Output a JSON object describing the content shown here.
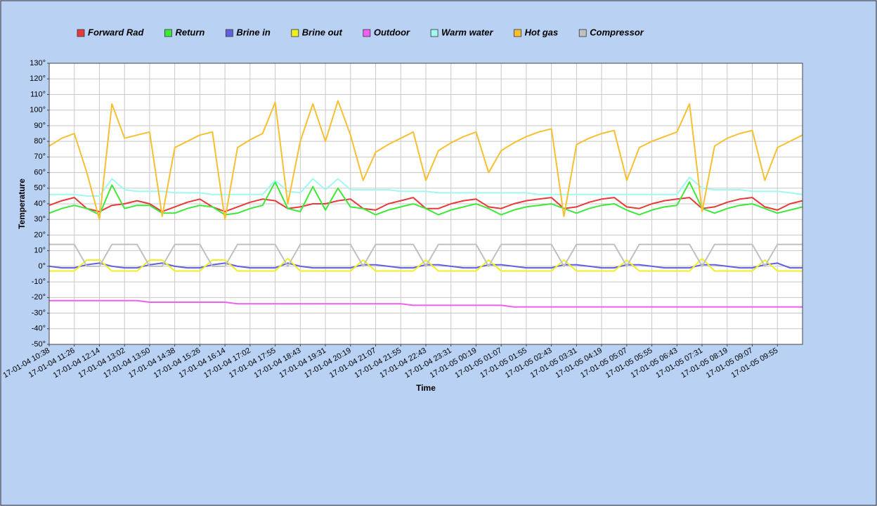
{
  "chart_data": {
    "type": "line",
    "x_label": "Time",
    "y_label": "Temperature",
    "categories": [
      "17-01-04 10:38",
      null,
      "17-01-04 11:26",
      null,
      "17-01-04 12:14",
      null,
      "17-01-04 13:02",
      null,
      "17-01-04 13:50",
      null,
      "17-01-04 14:38",
      null,
      "17-01-04 15:26",
      null,
      "17-01-04 16:14",
      null,
      "17-01-04 17:02",
      null,
      "17-01-04 17:55",
      null,
      "17-01-04 18:43",
      null,
      "17-01-04 19:31",
      null,
      "17-01-04 20:19",
      null,
      "17-01-04 21:07",
      null,
      "17-01-04 21:55",
      null,
      "17-01-04 22:43",
      null,
      "17-01-04 23:31",
      null,
      "17-01-05 00:19",
      null,
      "17-01-05 01:07",
      null,
      "17-01-05 01:55",
      null,
      "17-01-05 02:43",
      null,
      "17-01-05 03:31",
      null,
      "17-01-05 04:19",
      null,
      "17-01-05 05:07",
      null,
      "17-01-05 05:55",
      null,
      "17-01-05 06:43",
      null,
      "17-01-05 07:31",
      null,
      "17-01-05 08:19",
      null,
      "17-01-05 09:07",
      null,
      "17-01-05 09:55",
      null,
      null
    ],
    "ylim": [
      -50,
      130
    ],
    "yticks": [
      {
        "value": -50,
        "label": "-50°"
      },
      {
        "value": -40,
        "label": "-40°"
      },
      {
        "value": -30,
        "label": "-30°"
      },
      {
        "value": -20,
        "label": "-20°"
      },
      {
        "value": -10,
        "label": "-10°"
      },
      {
        "value": 0,
        "label": "0°"
      },
      {
        "value": 10,
        "label": "10°"
      },
      {
        "value": 20,
        "label": "20°"
      },
      {
        "value": 30,
        "label": "30°"
      },
      {
        "value": 40,
        "label": "40°"
      },
      {
        "value": 50,
        "label": "50°"
      },
      {
        "value": 60,
        "label": "60°"
      },
      {
        "value": 70,
        "label": "70°"
      },
      {
        "value": 80,
        "label": "80°"
      },
      {
        "value": 90,
        "label": "90°"
      },
      {
        "value": 100,
        "label": "100°"
      },
      {
        "value": 110,
        "label": "110°"
      },
      {
        "value": 120,
        "label": "120°"
      },
      {
        "value": 130,
        "label": "130°"
      }
    ],
    "grid": true,
    "legend": "top",
    "series": [
      {
        "name": "Forward Rad",
        "color": "#e83a3a",
        "values": [
          39,
          42,
          44,
          37,
          35,
          39,
          40,
          42,
          40,
          35,
          38,
          41,
          43,
          38,
          35,
          38,
          41,
          43,
          42,
          37,
          38,
          40,
          40,
          42,
          43,
          37,
          36,
          40,
          42,
          44,
          37,
          37,
          40,
          42,
          43,
          38,
          37,
          40,
          42,
          43,
          44,
          37,
          38,
          41,
          43,
          44,
          38,
          37,
          40,
          42,
          43,
          44,
          37,
          38,
          41,
          43,
          44,
          38,
          36,
          40,
          42
        ]
      },
      {
        "name": "Return",
        "color": "#3ee83a",
        "values": [
          34,
          37,
          39,
          37,
          33,
          52,
          37,
          39,
          39,
          34,
          34,
          37,
          39,
          38,
          33,
          34,
          37,
          39,
          54,
          37,
          35,
          51,
          36,
          50,
          38,
          37,
          33,
          36,
          38,
          40,
          37,
          33,
          36,
          38,
          40,
          37,
          33,
          36,
          38,
          39,
          40,
          37,
          34,
          37,
          39,
          40,
          36,
          33,
          36,
          38,
          39,
          54,
          37,
          34,
          37,
          39,
          40,
          37,
          34,
          36,
          38
        ]
      },
      {
        "name": "Brine in",
        "color": "#6060e0",
        "values": [
          0,
          -1,
          -1,
          1,
          2,
          0,
          -1,
          -1,
          1,
          2,
          0,
          -1,
          -1,
          1,
          2,
          0,
          -1,
          -1,
          -1,
          2,
          0,
          -1,
          -1,
          -1,
          -1,
          1,
          1,
          0,
          -1,
          -1,
          1,
          1,
          0,
          -1,
          -1,
          1,
          1,
          0,
          -1,
          -1,
          -1,
          1,
          1,
          0,
          -1,
          -1,
          1,
          1,
          0,
          -1,
          -1,
          -1,
          1,
          1,
          0,
          -1,
          -1,
          1,
          2,
          -1,
          -1
        ]
      },
      {
        "name": "Brine out",
        "color": "#f0f020",
        "values": [
          -3,
          -3,
          -3,
          4,
          4,
          -3,
          -3,
          -3,
          4,
          4,
          -3,
          -3,
          -3,
          4,
          4,
          -3,
          -3,
          -3,
          -3,
          5,
          -3,
          -3,
          -3,
          -3,
          -3,
          4,
          -3,
          -3,
          -3,
          -3,
          4,
          -3,
          -3,
          -3,
          -3,
          4,
          -3,
          -3,
          -3,
          -3,
          -3,
          4,
          -3,
          -3,
          -3,
          -3,
          4,
          -3,
          -3,
          -3,
          -3,
          -3,
          5,
          -3,
          -3,
          -3,
          -3,
          4,
          -3,
          -3,
          -3
        ]
      },
      {
        "name": "Outdoor",
        "color": "#f060f0",
        "values": [
          -22,
          -22,
          -22,
          -22,
          -22,
          -22,
          -22,
          -22,
          -23,
          -23,
          -23,
          -23,
          -23,
          -23,
          -23,
          -24,
          -24,
          -24,
          -24,
          -24,
          -24,
          -24,
          -24,
          -24,
          -24,
          -24,
          -24,
          -24,
          -24,
          -25,
          -25,
          -25,
          -25,
          -25,
          -25,
          -25,
          -25,
          -26,
          -26,
          -26,
          -26,
          -26,
          -26,
          -26,
          -26,
          -26,
          -26,
          -26,
          -26,
          -26,
          -26,
          -26,
          -26,
          -26,
          -26,
          -26,
          -26,
          -26,
          -26,
          -26,
          -26
        ]
      },
      {
        "name": "Warm water",
        "color": "#a0f8f0",
        "values": [
          46,
          46,
          46,
          45,
          45,
          56,
          49,
          48,
          48,
          48,
          47,
          47,
          47,
          46,
          46,
          46,
          46,
          46,
          55,
          48,
          47,
          56,
          49,
          56,
          49,
          49,
          49,
          49,
          48,
          48,
          48,
          47,
          47,
          47,
          47,
          47,
          47,
          47,
          47,
          46,
          46,
          46,
          46,
          46,
          46,
          46,
          46,
          46,
          46,
          46,
          46,
          57,
          50,
          49,
          49,
          49,
          48,
          48,
          48,
          47,
          46
        ]
      },
      {
        "name": "Hot gas",
        "color": "#f8c030",
        "values": [
          77,
          82,
          85,
          60,
          30,
          104,
          82,
          84,
          86,
          32,
          76,
          80,
          84,
          86,
          30,
          76,
          81,
          85,
          105,
          40,
          80,
          104,
          80,
          106,
          84,
          55,
          73,
          78,
          82,
          86,
          55,
          74,
          79,
          83,
          86,
          60,
          74,
          79,
          83,
          86,
          88,
          32,
          78,
          82,
          85,
          87,
          55,
          76,
          80,
          83,
          86,
          104,
          35,
          77,
          82,
          85,
          87,
          55,
          76,
          80,
          84
        ]
      },
      {
        "name": "Compressor",
        "color": "#c0c0c0",
        "values": [
          14,
          14,
          14,
          0,
          0,
          14,
          14,
          14,
          0,
          0,
          14,
          14,
          14,
          0,
          0,
          14,
          14,
          14,
          14,
          0,
          14,
          14,
          14,
          14,
          14,
          0,
          14,
          14,
          14,
          14,
          0,
          14,
          14,
          14,
          14,
          0,
          14,
          14,
          14,
          14,
          14,
          0,
          14,
          14,
          14,
          14,
          0,
          14,
          14,
          14,
          14,
          14,
          0,
          14,
          14,
          14,
          14,
          0,
          14,
          14,
          14
        ]
      }
    ]
  }
}
